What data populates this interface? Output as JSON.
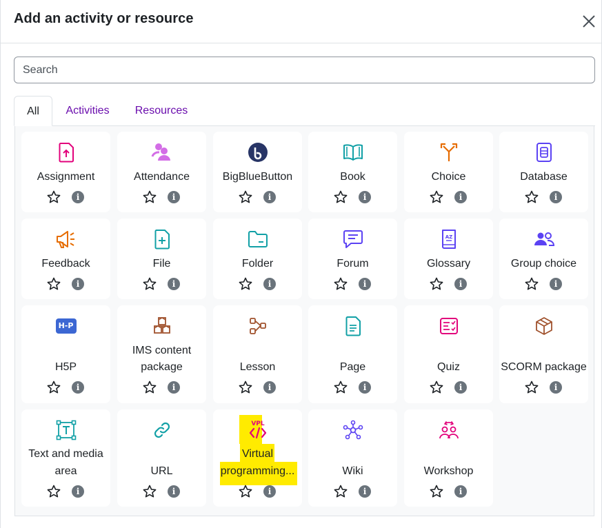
{
  "dialog": {
    "title": "Add an activity or resource",
    "close_icon": "close-icon"
  },
  "search": {
    "placeholder": "Search",
    "value": ""
  },
  "tabs": [
    {
      "label": "All",
      "active": true
    },
    {
      "label": "Activities",
      "active": false
    },
    {
      "label": "Resources",
      "active": false
    }
  ],
  "info_glyph": "i",
  "colors": {
    "accent": "#6a0dad",
    "pink": "#e2017b",
    "teal": "#11a0a6",
    "orange": "#e66c00",
    "purple": "#5b42f3",
    "brown": "#a0522d",
    "blue": "#3c67d3"
  },
  "items": [
    {
      "name": "Assignment",
      "icon": "assignment-icon"
    },
    {
      "name": "Attendance",
      "icon": "attendance-icon"
    },
    {
      "name": "BigBlueButton",
      "icon": "bigbluebutton-icon"
    },
    {
      "name": "Book",
      "icon": "book-icon"
    },
    {
      "name": "Choice",
      "icon": "choice-icon"
    },
    {
      "name": "Database",
      "icon": "database-icon"
    },
    {
      "name": "Feedback",
      "icon": "feedback-icon"
    },
    {
      "name": "File",
      "icon": "file-icon"
    },
    {
      "name": "Folder",
      "icon": "folder-icon"
    },
    {
      "name": "Forum",
      "icon": "forum-icon"
    },
    {
      "name": "Glossary",
      "icon": "glossary-icon"
    },
    {
      "name": "Group choice",
      "icon": "group-choice-icon"
    },
    {
      "name": "H5P",
      "icon": "h5p-icon",
      "icon_text": "H-P"
    },
    {
      "name_line1": "IMS content",
      "name_line2": "package",
      "icon": "ims-package-icon"
    },
    {
      "name": "Lesson",
      "icon": "lesson-icon"
    },
    {
      "name": "Page",
      "icon": "page-icon"
    },
    {
      "name": "Quiz",
      "icon": "quiz-icon"
    },
    {
      "name": "SCORM package",
      "icon": "scorm-icon"
    },
    {
      "name_line1": "Text and media",
      "name_line2": "area",
      "icon": "text-media-icon"
    },
    {
      "name": "URL",
      "icon": "url-icon"
    },
    {
      "name_line1": "Virtual",
      "name_line2": "programming...",
      "icon": "vpl-icon",
      "icon_text": "VPL",
      "highlighted": true
    },
    {
      "name": "Wiki",
      "icon": "wiki-icon"
    },
    {
      "name": "Workshop",
      "icon": "workshop-icon"
    }
  ]
}
